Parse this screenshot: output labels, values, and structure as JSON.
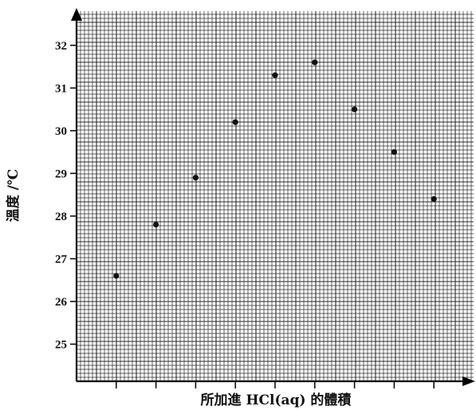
{
  "chart_data": {
    "type": "scatter",
    "title": "",
    "xlabel": "所加進 HCl(aq) 的體積",
    "ylabel": "溫度 /℃",
    "xlim": [
      0,
      10
    ],
    "ylim": [
      24.13,
      32.8
    ],
    "y_ticks": [
      25,
      26,
      27,
      28,
      29,
      30,
      31,
      32
    ],
    "y_tick_labels": [
      "25",
      "26",
      "27",
      "28",
      "29",
      "30",
      "31",
      "32"
    ],
    "x_ticks": [
      1,
      2,
      3,
      4,
      5,
      6,
      7,
      8,
      9
    ],
    "grid": true,
    "legend": "none",
    "colors": {
      "grid": "#2a2a2a",
      "points": "#111111",
      "axis": "#000000"
    },
    "series": [
      {
        "x": [
          1,
          2,
          3,
          4,
          5,
          6,
          7,
          8,
          9
        ],
        "y": [
          26.6,
          27.8,
          28.9,
          30.2,
          31.3,
          31.6,
          30.5,
          29.5,
          28.4
        ]
      }
    ]
  }
}
